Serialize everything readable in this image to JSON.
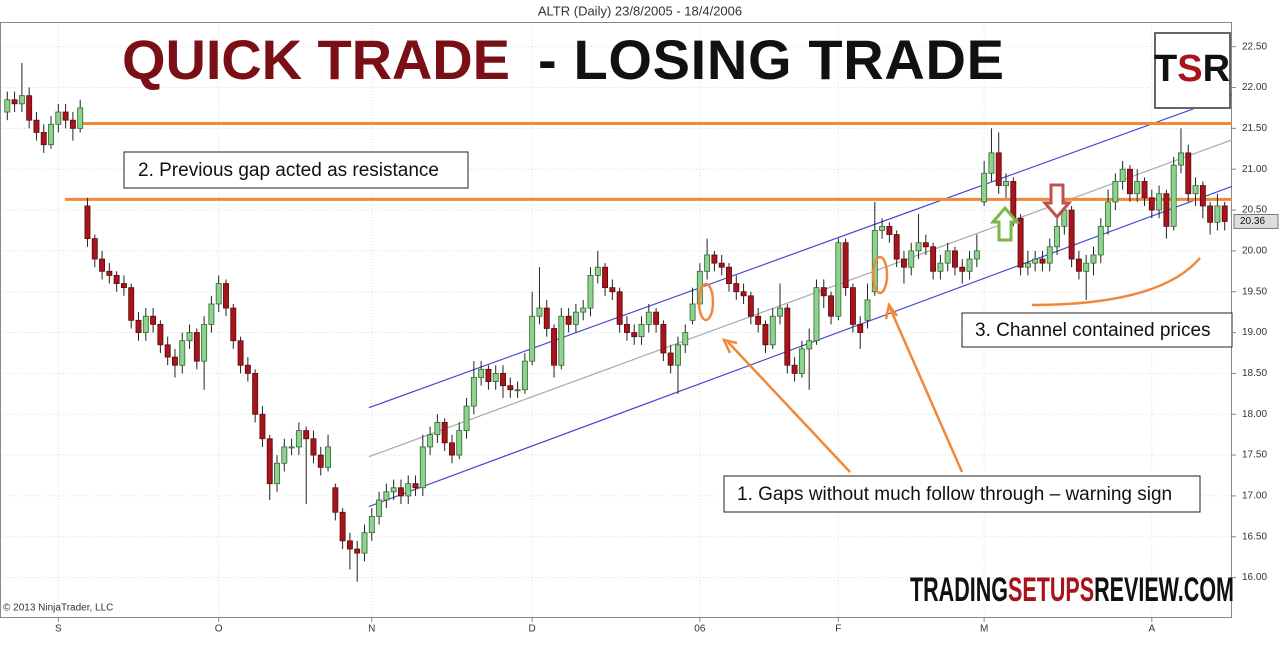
{
  "chart_data": {
    "type": "candlestick",
    "title": "ALTR (Daily)  23/8/2005 - 18/4/2006",
    "open": [
      21.7,
      21.85,
      21.8,
      21.9,
      21.6,
      21.45,
      21.3,
      21.55,
      21.7,
      21.6,
      21.5,
      20.55,
      20.15,
      19.9,
      19.75,
      19.7,
      19.6,
      19.55,
      19.15,
      19.0,
      19.2,
      19.1,
      18.85,
      18.7,
      18.6,
      18.9,
      19.0,
      18.65,
      19.1,
      19.35,
      19.6,
      19.3,
      18.9,
      18.6,
      18.5,
      18.0,
      17.7,
      17.15,
      17.4,
      17.6,
      17.6,
      17.8,
      17.7,
      17.5,
      17.35,
      17.1,
      16.8,
      16.45,
      16.35,
      16.3,
      16.55,
      16.75,
      16.95,
      17.05,
      17.1,
      17.0,
      17.15,
      17.1,
      17.6,
      17.75,
      17.9,
      17.65,
      17.5,
      17.8,
      18.1,
      18.45,
      18.55,
      18.4,
      18.5,
      18.35,
      18.3,
      18.3,
      18.65,
      19.2,
      19.3,
      19.05,
      18.6,
      19.2,
      19.1,
      19.25,
      19.3,
      19.7,
      19.8,
      19.55,
      19.5,
      19.1,
      19.0,
      18.95,
      19.1,
      19.25,
      19.1,
      18.75,
      18.6,
      18.85,
      19.15,
      19.35,
      19.75,
      19.95,
      19.85,
      19.8,
      19.6,
      19.5,
      19.45,
      19.2,
      19.1,
      18.85,
      19.2,
      19.3,
      18.6,
      18.5,
      18.8,
      18.9,
      19.55,
      19.45,
      19.2,
      20.1,
      19.55,
      19.1,
      19.15,
      19.5,
      20.25,
      20.3,
      20.2,
      19.9,
      19.8,
      20.0,
      20.1,
      20.05,
      19.75,
      19.85,
      20.0,
      19.8,
      19.75,
      19.9,
      20.6,
      20.95,
      21.2,
      20.8,
      20.85,
      20.4,
      19.8,
      19.85,
      19.9,
      19.85,
      20.05,
      20.3,
      20.5,
      19.9,
      19.75,
      19.85,
      19.95,
      20.3,
      20.6,
      20.85,
      21.0,
      20.7,
      20.85,
      20.65,
      20.5,
      20.7,
      20.3,
      21.05,
      21.2,
      20.7,
      20.8,
      20.55,
      20.35,
      20.55
    ],
    "high": [
      21.95,
      21.95,
      22.3,
      22.0,
      21.7,
      21.55,
      21.65,
      21.8,
      21.8,
      21.7,
      21.85,
      20.65,
      20.2,
      20.0,
      19.85,
      19.75,
      19.7,
      19.6,
      19.25,
      19.3,
      19.3,
      19.15,
      18.95,
      18.8,
      19.0,
      19.1,
      19.05,
      19.2,
      19.45,
      19.7,
      19.65,
      19.35,
      18.95,
      18.7,
      18.55,
      18.1,
      17.75,
      17.5,
      17.7,
      17.7,
      17.9,
      17.85,
      17.8,
      17.6,
      17.75,
      17.15,
      16.85,
      16.55,
      16.45,
      16.65,
      16.85,
      17.05,
      17.15,
      17.2,
      17.2,
      17.25,
      17.25,
      17.75,
      17.85,
      18.0,
      17.95,
      17.75,
      17.9,
      18.2,
      18.65,
      18.65,
      18.6,
      18.6,
      18.6,
      18.45,
      18.4,
      18.75,
      19.5,
      19.8,
      19.4,
      19.1,
      19.3,
      19.3,
      19.35,
      19.4,
      19.8,
      20.0,
      19.85,
      19.65,
      19.55,
      19.2,
      19.1,
      19.2,
      19.35,
      19.3,
      19.15,
      18.85,
      18.95,
      19.1,
      19.55,
      19.85,
      20.15,
      20.0,
      19.95,
      19.85,
      19.7,
      19.6,
      19.5,
      19.3,
      19.15,
      19.3,
      19.6,
      19.35,
      18.7,
      18.9,
      19.05,
      19.65,
      19.65,
      19.5,
      20.15,
      20.15,
      19.6,
      19.2,
      19.6,
      20.6,
      20.4,
      20.35,
      20.25,
      20.0,
      20.1,
      20.45,
      20.2,
      20.1,
      19.95,
      20.1,
      20.05,
      19.9,
      20.0,
      20.2,
      21.1,
      21.5,
      21.45,
      20.95,
      20.9,
      20.45,
      20.0,
      20.0,
      20.0,
      20.15,
      20.4,
      20.6,
      20.55,
      20.0,
      19.95,
      20.05,
      20.4,
      20.75,
      20.95,
      21.1,
      21.05,
      21.0,
      20.9,
      20.75,
      20.8,
      20.75,
      21.15,
      21.5,
      21.3,
      20.9,
      20.85,
      20.6,
      20.7,
      20.6
    ],
    "low": [
      21.6,
      21.7,
      21.7,
      21.5,
      21.35,
      21.2,
      21.25,
      21.45,
      21.5,
      21.35,
      21.45,
      20.05,
      19.8,
      19.65,
      19.6,
      19.5,
      19.45,
      19.05,
      18.9,
      18.9,
      19.0,
      18.75,
      18.6,
      18.45,
      18.5,
      18.8,
      18.55,
      18.3,
      19.0,
      19.25,
      19.2,
      18.8,
      18.5,
      18.4,
      17.9,
      17.6,
      16.95,
      17.05,
      17.3,
      17.5,
      17.5,
      16.9,
      17.4,
      17.25,
      17.3,
      16.7,
      16.35,
      16.1,
      15.95,
      16.2,
      16.45,
      16.65,
      16.85,
      16.95,
      16.9,
      16.9,
      17.0,
      17.0,
      17.5,
      17.65,
      17.55,
      17.4,
      17.45,
      17.7,
      18.0,
      18.35,
      18.3,
      18.3,
      18.2,
      18.2,
      18.2,
      18.25,
      18.6,
      19.1,
      18.95,
      18.45,
      18.55,
      19.0,
      19.0,
      19.15,
      19.2,
      19.6,
      19.45,
      19.4,
      19.0,
      18.9,
      18.85,
      18.85,
      19.0,
      19.0,
      18.65,
      18.5,
      18.25,
      18.75,
      19.1,
      19.3,
      19.65,
      19.75,
      19.7,
      19.5,
      19.4,
      19.35,
      19.1,
      19.0,
      18.75,
      18.8,
      19.1,
      18.5,
      18.4,
      18.45,
      18.3,
      18.85,
      19.3,
      19.1,
      19.15,
      19.45,
      19.0,
      18.8,
      19.05,
      19.45,
      20.15,
      20.1,
      19.8,
      19.6,
      19.7,
      19.9,
      19.95,
      19.65,
      19.65,
      19.75,
      19.7,
      19.6,
      19.65,
      19.8,
      20.55,
      20.85,
      20.7,
      20.65,
      20.3,
      19.7,
      19.7,
      19.75,
      19.75,
      19.75,
      19.95,
      20.2,
      19.8,
      19.65,
      19.4,
      19.7,
      19.85,
      20.2,
      20.5,
      20.75,
      20.6,
      20.6,
      20.55,
      20.4,
      20.4,
      20.15,
      20.25,
      20.95,
      20.6,
      20.55,
      20.4,
      20.2,
      20.25,
      20.25
    ],
    "close": [
      21.85,
      21.8,
      21.9,
      21.6,
      21.45,
      21.3,
      21.55,
      21.7,
      21.6,
      21.5,
      21.75,
      20.15,
      19.9,
      19.75,
      19.7,
      19.6,
      19.55,
      19.15,
      19.0,
      19.2,
      19.1,
      18.85,
      18.7,
      18.6,
      18.9,
      19.0,
      18.65,
      19.1,
      19.35,
      19.6,
      19.3,
      18.9,
      18.6,
      18.5,
      18.0,
      17.7,
      17.15,
      17.4,
      17.6,
      17.6,
      17.8,
      17.7,
      17.5,
      17.35,
      17.6,
      16.8,
      16.45,
      16.35,
      16.3,
      16.55,
      16.75,
      16.95,
      17.05,
      17.1,
      17.0,
      17.15,
      17.1,
      17.6,
      17.75,
      17.9,
      17.65,
      17.5,
      17.8,
      18.1,
      18.45,
      18.55,
      18.4,
      18.5,
      18.35,
      18.3,
      18.3,
      18.65,
      19.2,
      19.3,
      19.05,
      18.6,
      19.2,
      19.1,
      19.25,
      19.3,
      19.7,
      19.8,
      19.55,
      19.5,
      19.1,
      19.0,
      18.95,
      19.1,
      19.25,
      19.1,
      18.75,
      18.6,
      18.85,
      19.0,
      19.35,
      19.75,
      19.95,
      19.85,
      19.8,
      19.6,
      19.5,
      19.45,
      19.2,
      19.1,
      18.85,
      19.2,
      19.3,
      18.6,
      18.5,
      18.8,
      18.9,
      19.55,
      19.45,
      19.2,
      20.1,
      19.55,
      19.1,
      19.0,
      19.4,
      20.25,
      20.3,
      20.2,
      19.9,
      19.8,
      20.0,
      20.1,
      20.05,
      19.75,
      19.85,
      20.0,
      19.8,
      19.75,
      19.9,
      20.0,
      20.95,
      21.2,
      20.8,
      20.85,
      20.4,
      19.8,
      19.85,
      19.9,
      19.85,
      20.05,
      20.3,
      20.5,
      19.9,
      19.75,
      19.85,
      19.95,
      20.3,
      20.6,
      20.85,
      21.0,
      20.7,
      20.85,
      20.65,
      20.5,
      20.7,
      20.3,
      21.05,
      21.2,
      20.7,
      20.8,
      20.55,
      20.35,
      20.55,
      20.36
    ],
    "up_color": "#8fd18f",
    "down_color": "#a8141c",
    "xlim": [
      -1,
      168
    ],
    "xticks": [
      {
        "value": 7,
        "label": "S"
      },
      {
        "value": 29,
        "label": "O"
      },
      {
        "value": 50,
        "label": "N"
      },
      {
        "value": 72,
        "label": "D"
      },
      {
        "value": 95,
        "label": "06"
      },
      {
        "value": 114,
        "label": "F"
      },
      {
        "value": 134,
        "label": "M"
      },
      {
        "value": 157,
        "label": "A"
      }
    ],
    "ylim": [
      15.53,
      22.9
    ],
    "yticks": [
      {
        "value": 16,
        "label": "16.00"
      },
      {
        "value": 16.5,
        "label": "16.50"
      },
      {
        "value": 17,
        "label": "17.00"
      },
      {
        "value": 17.5,
        "label": "17.50"
      },
      {
        "value": 18,
        "label": "18.00"
      },
      {
        "value": 18.5,
        "label": "18.50"
      },
      {
        "value": 19,
        "label": "19.00"
      },
      {
        "value": 19.5,
        "label": "19.50"
      },
      {
        "value": 20,
        "label": "20.00"
      },
      {
        "value": 20.5,
        "label": "20.50"
      },
      {
        "value": 21,
        "label": "21.00"
      },
      {
        "value": 21.5,
        "label": "21.50"
      },
      {
        "value": 22,
        "label": "22.00"
      },
      {
        "value": 22.5,
        "label": "22.50"
      }
    ],
    "grid": true,
    "trendlines": [
      {
        "color": "#4a4ad0",
        "x": [
          49.6,
          168.4
        ],
        "y": [
          18.08,
          21.91
        ]
      },
      {
        "color": "#a8a8a8",
        "x": [
          49.6,
          168.4
        ],
        "y": [
          17.48,
          21.36
        ]
      },
      {
        "color": "#4a4ad0",
        "x": [
          49.6,
          168.4
        ],
        "y": [
          16.87,
          20.79
        ]
      },
      {
        "color": "#f0883a",
        "x": [
          10.4,
          168.4
        ],
        "y": [
          21.56,
          21.56
        ]
      },
      {
        "color": "#f0883a",
        "x": [
          7.9,
          168.4
        ],
        "y": [
          20.63,
          20.63
        ]
      }
    ],
    "heading_red": "QUICK TRADE",
    "heading": "- LOSING TRADE",
    "logo": [
      "T",
      "S",
      "R"
    ],
    "watermark": [
      "TRADING",
      "SETUPS",
      "REVIEW.COM"
    ],
    "copyright": "© 2013 NinjaTrader, LLC",
    "annotations": [
      "2. Previous gap acted as resistance",
      "3. Channel contained prices",
      "1. Gaps without much follow through – warning sign"
    ]
  }
}
